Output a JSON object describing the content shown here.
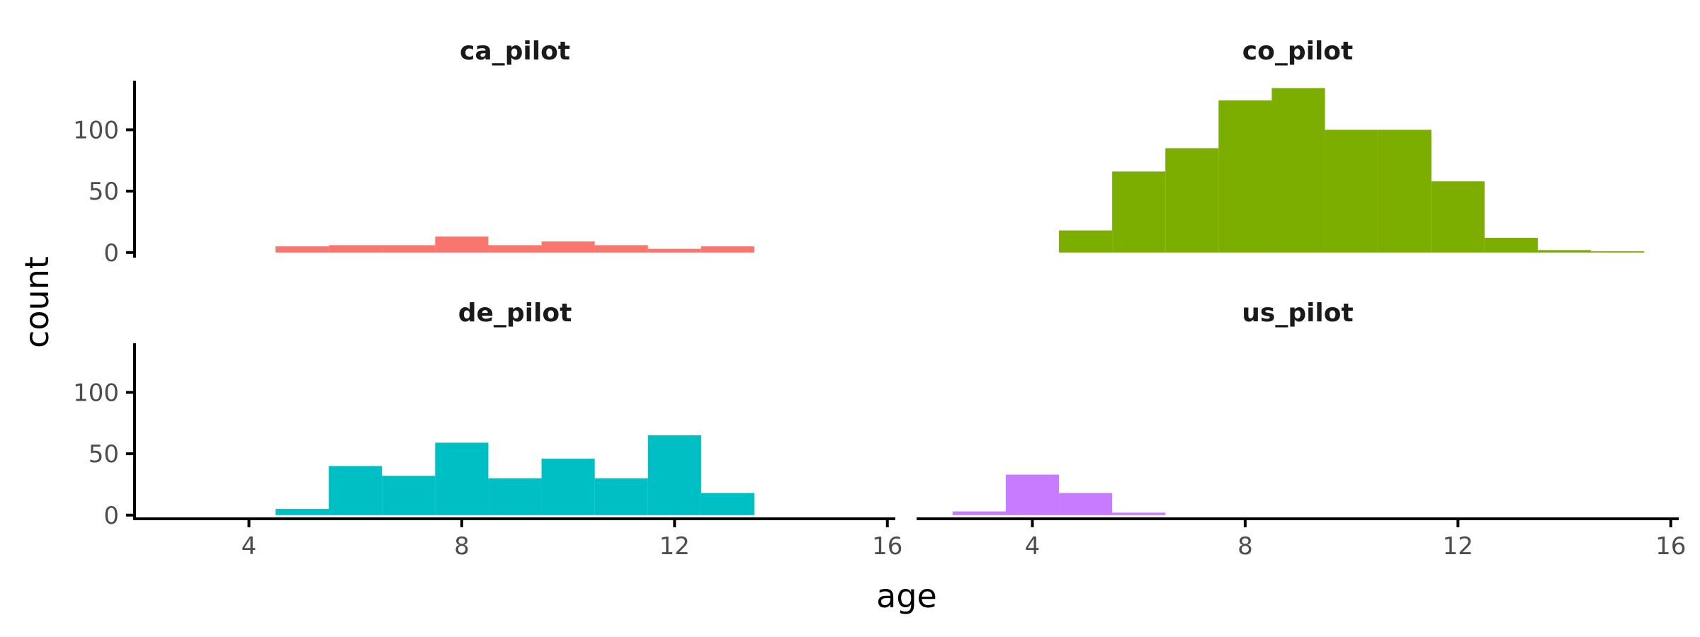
{
  "chart_data": {
    "type": "bar",
    "subtype": "histogram",
    "facet_layout": "2x2",
    "binwidth": 1,
    "xlabel": "age",
    "ylabel": "count",
    "xlim": [
      1.85,
      16.15
    ],
    "ylim": [
      -3,
      140
    ],
    "xticks": [
      4,
      8,
      12,
      16
    ],
    "yticks": [
      0,
      50,
      100
    ],
    "grid": false,
    "legend": "none",
    "panels": [
      {
        "name": "ca_pilot",
        "color": "#F8766D",
        "bins": [
          [
            5,
            5
          ],
          [
            6,
            6
          ],
          [
            7,
            6
          ],
          [
            8,
            13
          ],
          [
            9,
            6
          ],
          [
            10,
            9
          ],
          [
            11,
            6
          ],
          [
            12,
            3
          ],
          [
            13,
            5
          ]
        ]
      },
      {
        "name": "co_pilot",
        "color": "#7CAE00",
        "bins": [
          [
            5,
            18
          ],
          [
            6,
            66
          ],
          [
            7,
            85
          ],
          [
            8,
            124
          ],
          [
            9,
            134
          ],
          [
            10,
            100
          ],
          [
            11,
            100
          ],
          [
            12,
            58
          ],
          [
            13,
            12
          ],
          [
            14,
            2
          ],
          [
            15,
            1
          ]
        ]
      },
      {
        "name": "de_pilot",
        "color": "#00BFC4",
        "bins": [
          [
            5,
            5
          ],
          [
            6,
            40
          ],
          [
            7,
            32
          ],
          [
            8,
            59
          ],
          [
            9,
            30
          ],
          [
            10,
            46
          ],
          [
            11,
            30
          ],
          [
            12,
            65
          ],
          [
            13,
            18
          ]
        ]
      },
      {
        "name": "us_pilot",
        "color": "#C77CFF",
        "bins": [
          [
            3,
            3
          ],
          [
            4,
            33
          ],
          [
            5,
            18
          ],
          [
            6,
            2
          ]
        ]
      }
    ]
  }
}
